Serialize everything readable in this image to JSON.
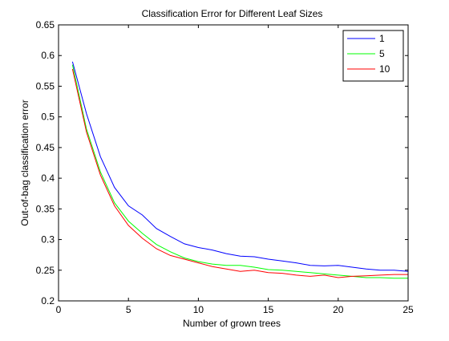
{
  "chart_data": {
    "type": "line",
    "title": "Classification Error for Different Leaf Sizes",
    "xlabel": "Number of grown trees",
    "ylabel": "Out-of-bag classification error",
    "xlim": [
      0,
      25
    ],
    "ylim": [
      0.2,
      0.65
    ],
    "xticks": [
      0,
      5,
      10,
      15,
      20,
      25
    ],
    "xtick_labels": [
      "0",
      "5",
      "10",
      "15",
      "20",
      "25"
    ],
    "yticks": [
      0.2,
      0.25,
      0.3,
      0.35,
      0.4,
      0.45,
      0.5,
      0.55,
      0.6,
      0.65
    ],
    "ytick_labels": [
      "0.2",
      "0.25",
      "0.3",
      "0.35",
      "0.4",
      "0.45",
      "0.5",
      "0.55",
      "0.6",
      "0.65"
    ],
    "grid": false,
    "legend_position": "top-right",
    "x": [
      1,
      2,
      3,
      4,
      5,
      6,
      7,
      8,
      9,
      10,
      11,
      12,
      13,
      14,
      15,
      16,
      17,
      18,
      19,
      20,
      21,
      22,
      23,
      24,
      25
    ],
    "series": [
      {
        "name": "1",
        "color": "#0000ff",
        "values": [
          0.59,
          0.505,
          0.435,
          0.385,
          0.355,
          0.34,
          0.318,
          0.305,
          0.293,
          0.287,
          0.283,
          0.277,
          0.273,
          0.272,
          0.268,
          0.265,
          0.262,
          0.258,
          0.257,
          0.258,
          0.255,
          0.252,
          0.25,
          0.25,
          0.248
        ]
      },
      {
        "name": "5",
        "color": "#00ff00",
        "values": [
          0.585,
          0.48,
          0.41,
          0.36,
          0.33,
          0.31,
          0.292,
          0.28,
          0.27,
          0.264,
          0.26,
          0.258,
          0.258,
          0.255,
          0.251,
          0.25,
          0.248,
          0.246,
          0.244,
          0.242,
          0.24,
          0.238,
          0.238,
          0.237,
          0.237
        ]
      },
      {
        "name": "10",
        "color": "#ff0000",
        "values": [
          0.578,
          0.475,
          0.405,
          0.355,
          0.323,
          0.302,
          0.285,
          0.274,
          0.268,
          0.262,
          0.256,
          0.252,
          0.248,
          0.25,
          0.246,
          0.245,
          0.242,
          0.24,
          0.242,
          0.238,
          0.24,
          0.241,
          0.242,
          0.243,
          0.243
        ]
      }
    ]
  }
}
